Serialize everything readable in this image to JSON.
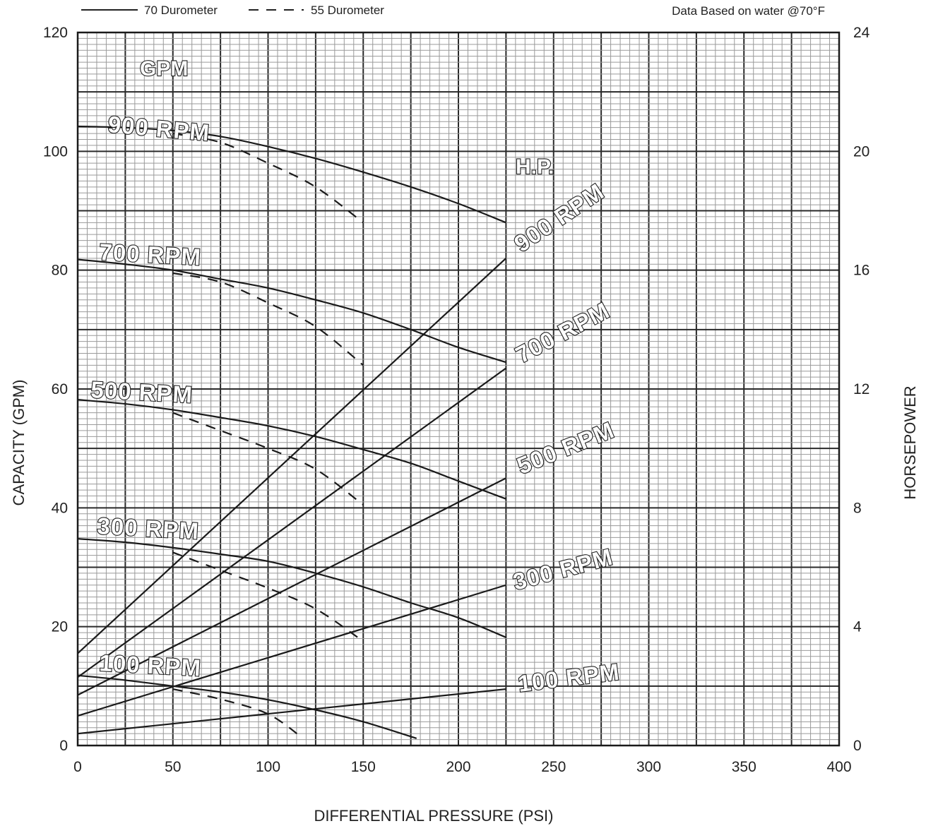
{
  "legend": {
    "solid_label": "70 Durometer",
    "dashed_label": "55 Durometer"
  },
  "note": "Data Based on water @70°F",
  "chart_data": {
    "type": "line",
    "xlabel": "DIFFERENTIAL PRESSURE (PSI)",
    "ylabel": "CAPACITY  (GPM)",
    "y2label": "HORSEPOWER",
    "xlim": [
      0,
      400
    ],
    "ylim": [
      0,
      120
    ],
    "y2lim": [
      0,
      24
    ],
    "x_ticks": [
      0,
      50,
      100,
      150,
      200,
      250,
      300,
      350,
      400
    ],
    "y_ticks": [
      0,
      20,
      40,
      60,
      80,
      100,
      120
    ],
    "y2_ticks": [
      0,
      4,
      8,
      12,
      16,
      20,
      24
    ],
    "grid": true,
    "capacity_unit_label": "GPM",
    "hp_unit_label": "H.P.",
    "capacity_curves": [
      {
        "rpm_label": "900 RPM",
        "line": "solid",
        "points": [
          [
            0,
            104.2
          ],
          [
            25,
            104.0
          ],
          [
            50,
            103.5
          ],
          [
            75,
            102.5
          ],
          [
            100,
            100.8
          ],
          [
            125,
            98.8
          ],
          [
            150,
            96.5
          ],
          [
            175,
            94.0
          ],
          [
            200,
            91.2
          ],
          [
            225,
            88.0
          ]
        ]
      },
      {
        "rpm_label": "900 RPM",
        "line": "dashed",
        "points": [
          [
            50,
            103.0
          ],
          [
            75,
            101.5
          ],
          [
            100,
            98.0
          ],
          [
            125,
            94.0
          ],
          [
            150,
            88.0
          ]
        ]
      },
      {
        "rpm_label": "700 RPM",
        "line": "solid",
        "points": [
          [
            0,
            81.8
          ],
          [
            25,
            81.0
          ],
          [
            50,
            80.0
          ],
          [
            75,
            78.5
          ],
          [
            100,
            77.0
          ],
          [
            125,
            75.0
          ],
          [
            150,
            72.8
          ],
          [
            175,
            70.0
          ],
          [
            200,
            67.0
          ],
          [
            225,
            64.5
          ]
        ]
      },
      {
        "rpm_label": "700 RPM",
        "line": "dashed",
        "points": [
          [
            50,
            79.5
          ],
          [
            75,
            78.0
          ],
          [
            100,
            74.5
          ],
          [
            125,
            70.5
          ],
          [
            150,
            64.0
          ]
        ]
      },
      {
        "rpm_label": "500 RPM",
        "line": "solid",
        "points": [
          [
            0,
            58.2
          ],
          [
            25,
            57.5
          ],
          [
            50,
            56.5
          ],
          [
            75,
            55.2
          ],
          [
            100,
            53.8
          ],
          [
            125,
            52.0
          ],
          [
            150,
            49.8
          ],
          [
            175,
            47.5
          ],
          [
            200,
            44.5
          ],
          [
            225,
            41.5
          ]
        ]
      },
      {
        "rpm_label": "500 RPM",
        "line": "dashed",
        "points": [
          [
            50,
            56.0
          ],
          [
            75,
            53.0
          ],
          [
            100,
            50.0
          ],
          [
            125,
            46.5
          ],
          [
            150,
            40.5
          ]
        ]
      },
      {
        "rpm_label": "300 RPM",
        "line": "solid",
        "points": [
          [
            0,
            34.8
          ],
          [
            25,
            34.2
          ],
          [
            50,
            33.3
          ],
          [
            75,
            32.2
          ],
          [
            100,
            31.0
          ],
          [
            125,
            29.0
          ],
          [
            150,
            26.7
          ],
          [
            175,
            24.0
          ],
          [
            200,
            21.5
          ],
          [
            225,
            18.2
          ]
        ]
      },
      {
        "rpm_label": "300 RPM",
        "line": "dashed",
        "points": [
          [
            50,
            32.5
          ],
          [
            75,
            29.5
          ],
          [
            100,
            26.5
          ],
          [
            125,
            23.0
          ],
          [
            148,
            18.0
          ]
        ]
      },
      {
        "rpm_label": "100 RPM",
        "line": "solid",
        "points": [
          [
            0,
            11.8
          ],
          [
            25,
            11.0
          ],
          [
            50,
            10.0
          ],
          [
            75,
            9.0
          ],
          [
            100,
            7.7
          ],
          [
            125,
            6.0
          ],
          [
            150,
            4.0
          ],
          [
            178,
            1.2
          ]
        ]
      },
      {
        "rpm_label": "100 RPM",
        "line": "dashed",
        "points": [
          [
            50,
            9.5
          ],
          [
            75,
            7.8
          ],
          [
            100,
            5.3
          ],
          [
            118,
            1.3
          ]
        ]
      }
    ],
    "horsepower_curves": [
      {
        "rpm_label": "900 RPM",
        "points": [
          [
            0,
            3.1
          ],
          [
            225,
            16.4
          ]
        ]
      },
      {
        "rpm_label": "700 RPM",
        "points": [
          [
            0,
            2.3
          ],
          [
            225,
            12.7
          ]
        ]
      },
      {
        "rpm_label": "500 RPM",
        "points": [
          [
            0,
            1.7
          ],
          [
            225,
            9.0
          ]
        ]
      },
      {
        "rpm_label": "300 RPM",
        "points": [
          [
            0,
            1.0
          ],
          [
            225,
            5.4
          ]
        ]
      },
      {
        "rpm_label": "100 RPM",
        "points": [
          [
            0,
            0.4
          ],
          [
            225,
            1.9
          ]
        ]
      }
    ],
    "labels": {
      "cap_900": "900 RPM",
      "cap_700": "700 RPM",
      "cap_500": "500 RPM",
      "cap_300": "300 RPM",
      "cap_100": "100 RPM",
      "hp_900": "900 RPM",
      "hp_700": "700 RPM",
      "hp_500": "500 RPM",
      "hp_300": "300 RPM",
      "hp_100": "100 RPM"
    }
  }
}
